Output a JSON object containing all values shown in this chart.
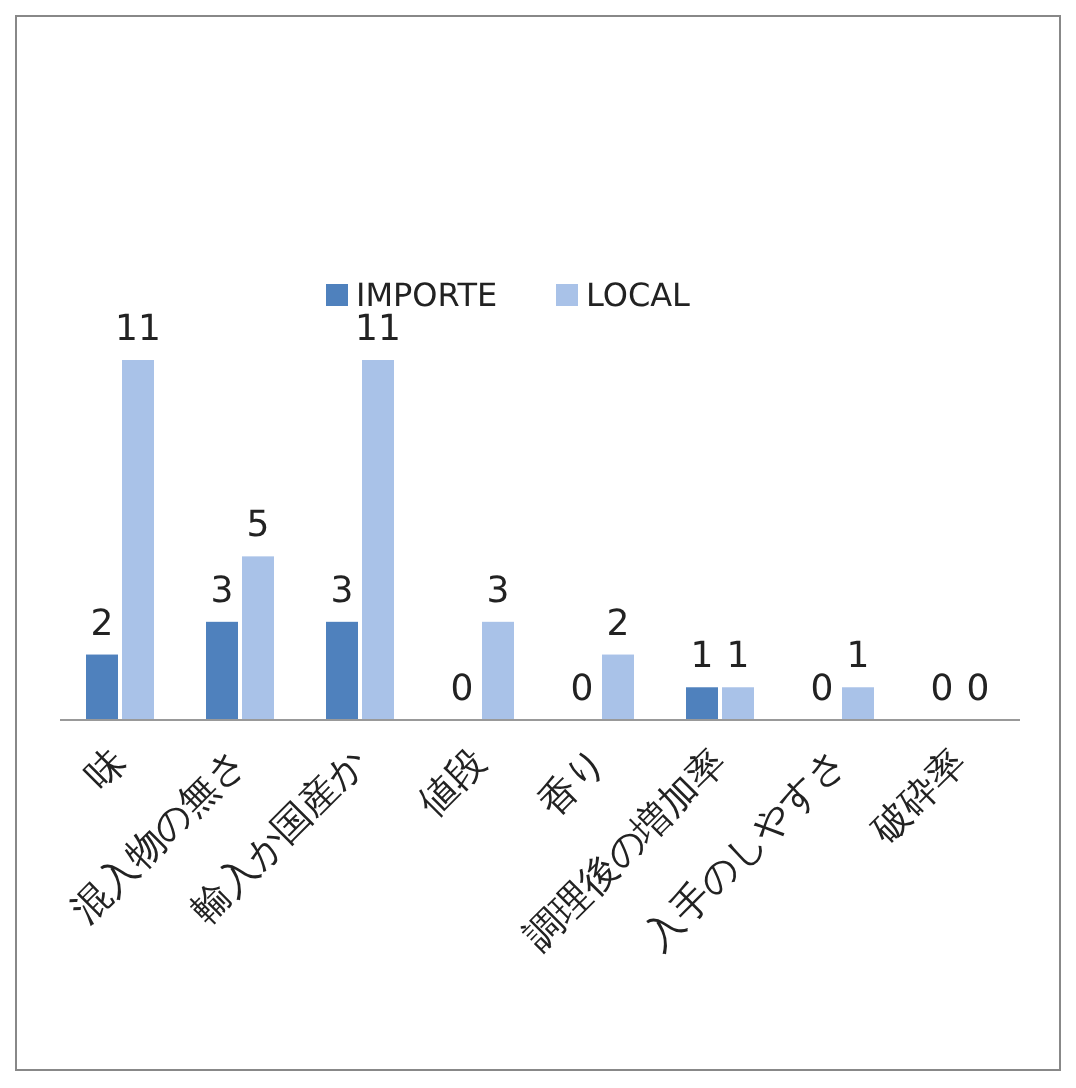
{
  "chart_data": {
    "type": "bar",
    "categories": [
      "味",
      "混入物の無さ",
      "輸入か国産か",
      "値段",
      "香り",
      "調理後の増加率",
      "入手のしやすさ",
      "破砕率"
    ],
    "series": [
      {
        "name": "IMPORTE",
        "color": "#4f81bd",
        "values": [
          2,
          3,
          3,
          0,
          0,
          1,
          0,
          0
        ]
      },
      {
        "name": "LOCAL",
        "color": "#a9c2e8",
        "values": [
          11,
          5,
          11,
          3,
          2,
          1,
          1,
          0
        ]
      }
    ],
    "data_labels": true,
    "legend": "top"
  }
}
